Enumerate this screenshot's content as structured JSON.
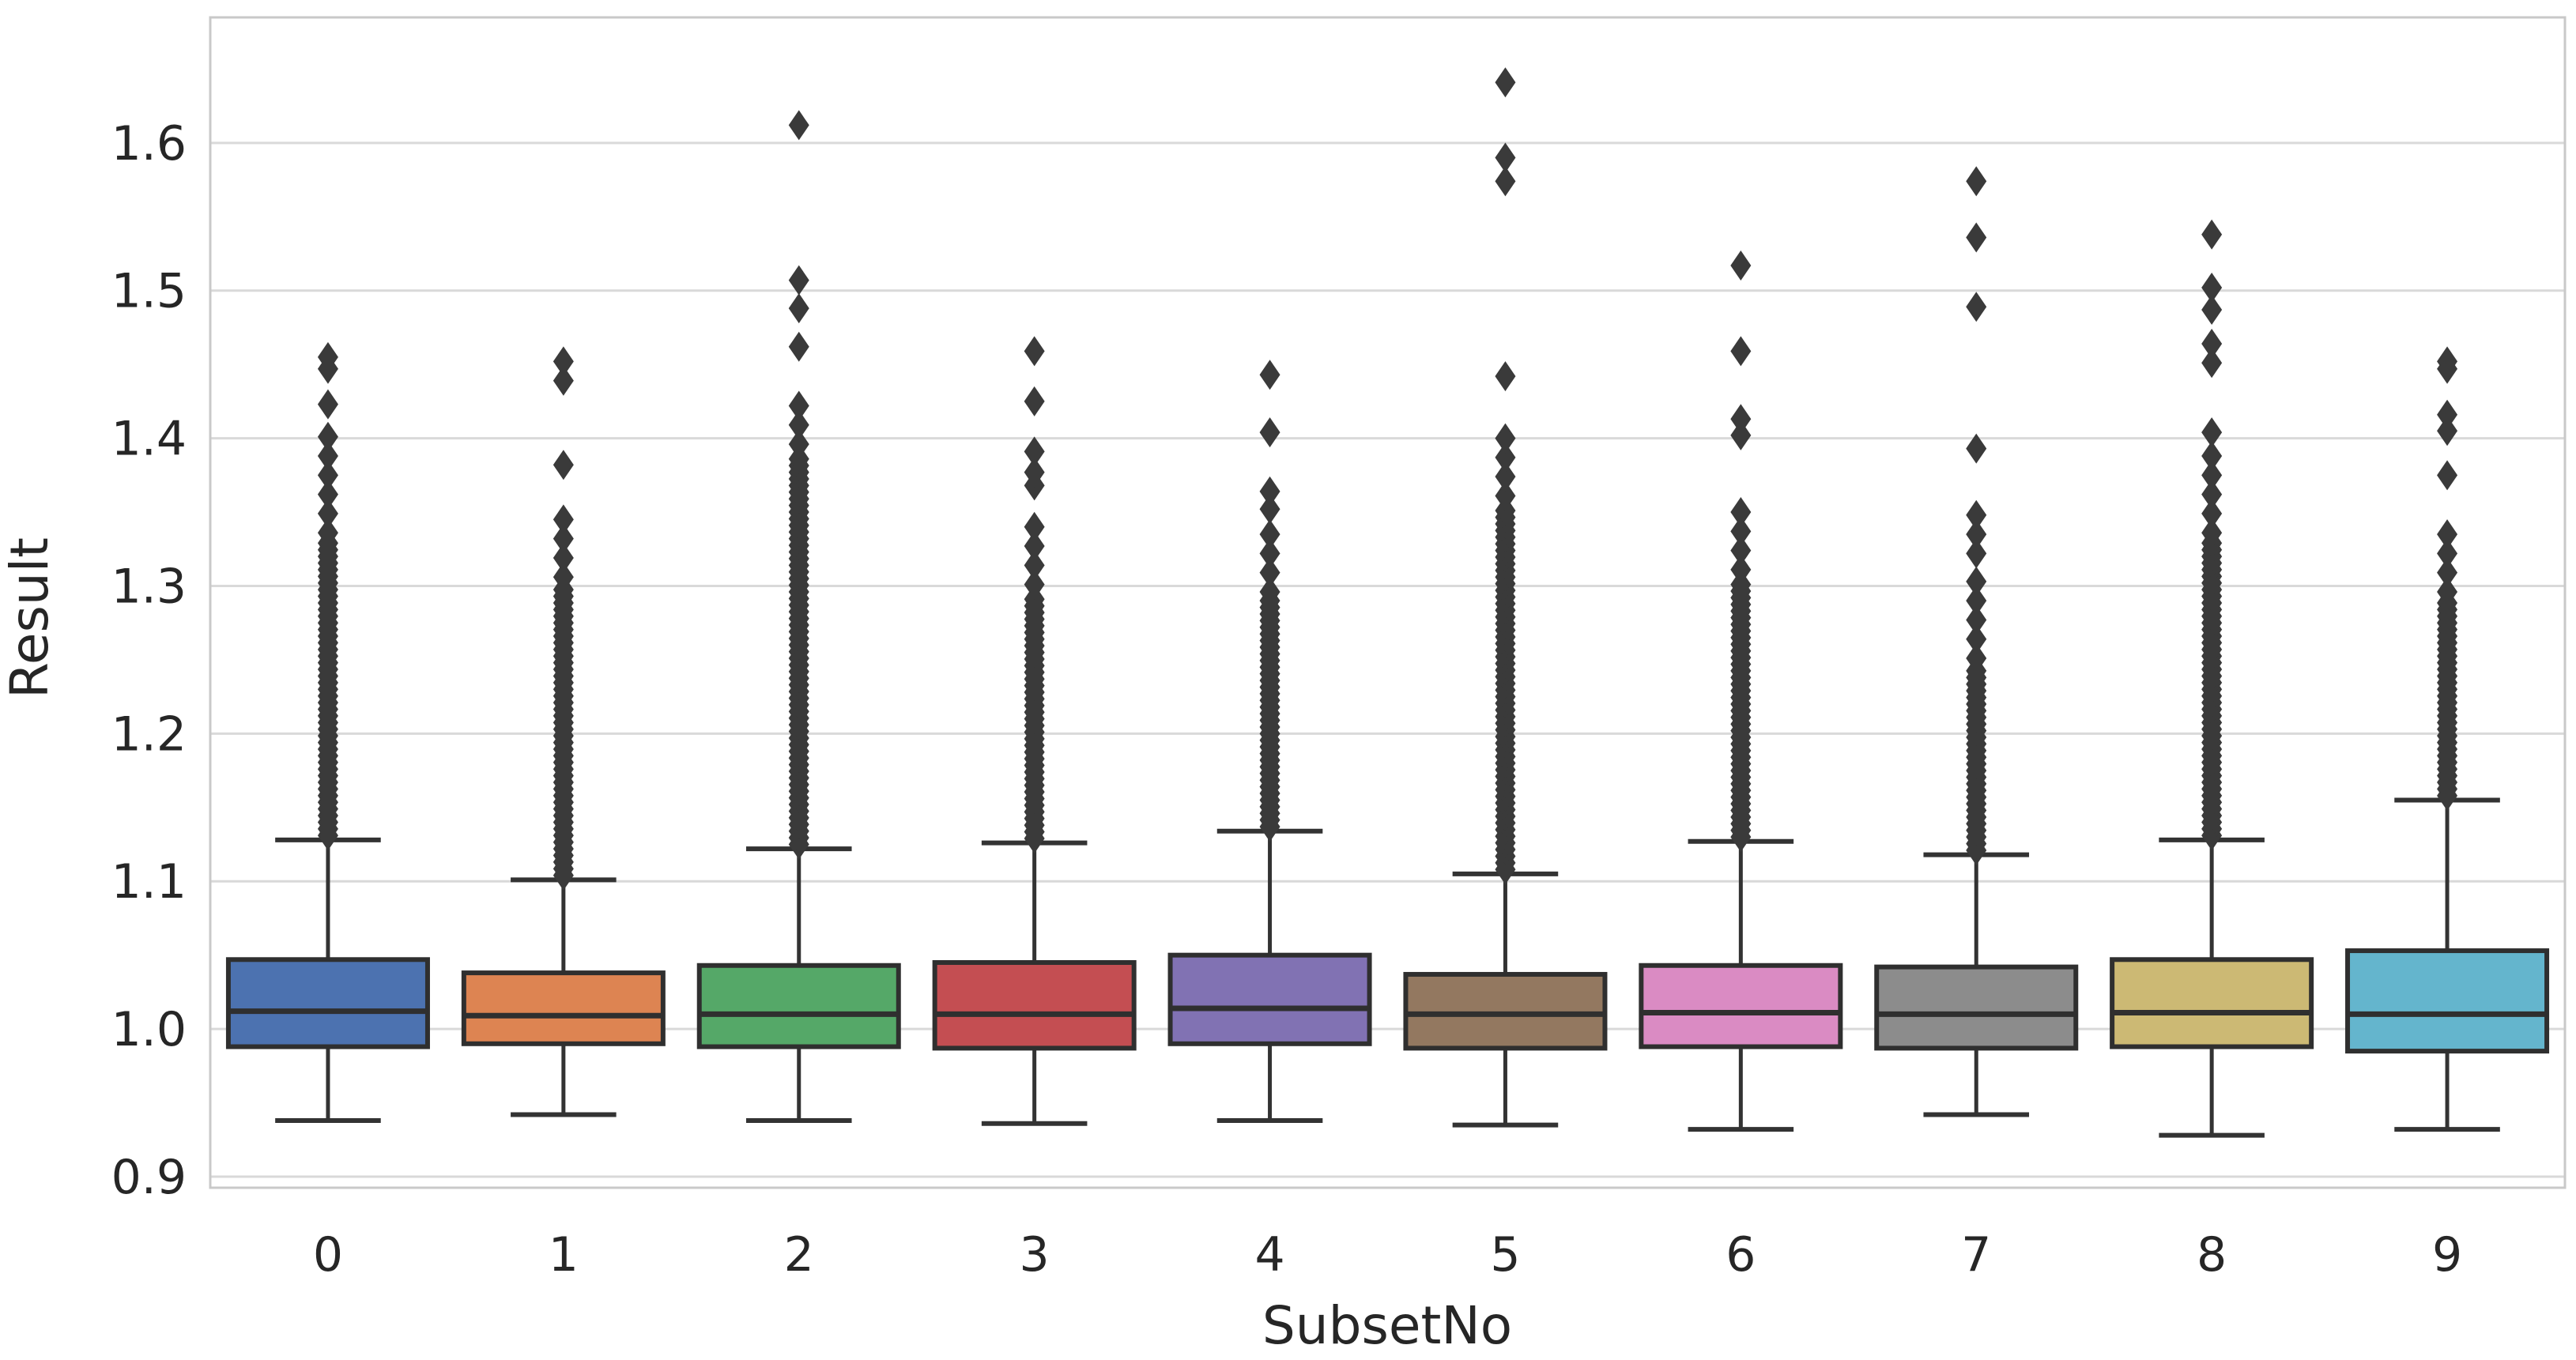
{
  "figure": {
    "background": "#ffffff"
  },
  "chart_data": {
    "type": "box",
    "title": "",
    "xlabel": "SubsetNo",
    "ylabel": "Result",
    "categories": [
      "0",
      "1",
      "2",
      "3",
      "4",
      "5",
      "6",
      "7",
      "8",
      "9"
    ],
    "y_axis": {
      "min": 0.8925,
      "max": 1.685,
      "ticks": [
        0.9,
        1.0,
        1.1,
        1.2,
        1.3,
        1.4,
        1.5,
        1.6
      ],
      "tick_labels": [
        "0.9",
        "1.0",
        "1.1",
        "1.2",
        "1.3",
        "1.4",
        "1.5",
        "1.6"
      ]
    },
    "grid": true,
    "legend": false,
    "grid_color": "#d9d9d9",
    "spine_color": "#c9c9c9",
    "line_color": "#2f2f2f",
    "whisker_color": "#333333",
    "flier_color": "#3a3a3a",
    "flier_marker": "diamond",
    "palette": [
      "#4C72B0",
      "#DD8452",
      "#55A868",
      "#C44E52",
      "#8172B3",
      "#937860",
      "#DA8BC3",
      "#8C8C8C",
      "#CCB974",
      "#64B5CD"
    ],
    "boxes": [
      {
        "category": "0",
        "color": "#4C72B0",
        "whisker_low": 0.938,
        "q1": 0.988,
        "median": 1.012,
        "q3": 1.047,
        "whisker_high": 1.128,
        "outliers_dense": {
          "from": 1.131,
          "to": 1.33,
          "step": 0.0045
        },
        "outliers_sparse": {
          "from": 1.336,
          "to": 1.41,
          "step": 0.013
        },
        "outliers": [
          1.423,
          1.447,
          1.455
        ]
      },
      {
        "category": "1",
        "color": "#DD8452",
        "whisker_low": 0.942,
        "q1": 0.99,
        "median": 1.009,
        "q3": 1.038,
        "whisker_high": 1.101,
        "outliers_dense": {
          "from": 1.104,
          "to": 1.3,
          "step": 0.0045
        },
        "outliers_sparse": {
          "from": 1.306,
          "to": 1.345,
          "step": 0.013
        },
        "outliers": [
          1.382,
          1.439,
          1.452
        ]
      },
      {
        "category": "2",
        "color": "#55A868",
        "whisker_low": 0.938,
        "q1": 0.988,
        "median": 1.01,
        "q3": 1.043,
        "whisker_high": 1.122,
        "outliers_dense": {
          "from": 1.125,
          "to": 1.39,
          "step": 0.0045
        },
        "outliers_sparse": {
          "from": 1.396,
          "to": 1.43,
          "step": 0.013
        },
        "outliers": [
          1.462,
          1.488,
          1.507,
          1.612
        ]
      },
      {
        "category": "3",
        "color": "#C44E52",
        "whisker_low": 0.936,
        "q1": 0.987,
        "median": 1.01,
        "q3": 1.045,
        "whisker_high": 1.126,
        "outliers_dense": {
          "from": 1.129,
          "to": 1.295,
          "step": 0.0045
        },
        "outliers_sparse": {
          "from": 1.301,
          "to": 1.34,
          "step": 0.013
        },
        "outliers": [
          1.368,
          1.377,
          1.391,
          1.425,
          1.459
        ]
      },
      {
        "category": "4",
        "color": "#8172B3",
        "whisker_low": 0.938,
        "q1": 0.99,
        "median": 1.014,
        "q3": 1.05,
        "whisker_high": 1.134,
        "outliers_dense": {
          "from": 1.137,
          "to": 1.29,
          "step": 0.0045
        },
        "outliers_sparse": {
          "from": 1.296,
          "to": 1.34,
          "step": 0.013
        },
        "outliers": [
          1.352,
          1.364,
          1.404,
          1.443
        ]
      },
      {
        "category": "5",
        "color": "#937860",
        "whisker_low": 0.935,
        "q1": 0.987,
        "median": 1.01,
        "q3": 1.037,
        "whisker_high": 1.105,
        "outliers_dense": {
          "from": 1.108,
          "to": 1.355,
          "step": 0.0045
        },
        "outliers_sparse": {
          "from": 1.361,
          "to": 1.408,
          "step": 0.013
        },
        "outliers": [
          1.442,
          1.574,
          1.59,
          1.641
        ]
      },
      {
        "category": "6",
        "color": "#DA8BC3",
        "whisker_low": 0.932,
        "q1": 0.988,
        "median": 1.011,
        "q3": 1.043,
        "whisker_high": 1.127,
        "outliers_dense": {
          "from": 1.13,
          "to": 1.305,
          "step": 0.0045
        },
        "outliers_sparse": {
          "from": 1.311,
          "to": 1.36,
          "step": 0.013
        },
        "outliers": [
          1.402,
          1.413,
          1.459,
          1.517
        ]
      },
      {
        "category": "7",
        "color": "#8C8C8C",
        "whisker_low": 0.942,
        "q1": 0.987,
        "median": 1.01,
        "q3": 1.042,
        "whisker_high": 1.118,
        "outliers_dense": {
          "from": 1.121,
          "to": 1.245,
          "step": 0.0045
        },
        "outliers_sparse": {
          "from": 1.251,
          "to": 1.31,
          "step": 0.013
        },
        "outliers": [
          1.322,
          1.335,
          1.348,
          1.393,
          1.489,
          1.536,
          1.574
        ]
      },
      {
        "category": "8",
        "color": "#CCB974",
        "whisker_low": 0.928,
        "q1": 0.988,
        "median": 1.011,
        "q3": 1.047,
        "whisker_high": 1.128,
        "outliers_dense": {
          "from": 1.131,
          "to": 1.33,
          "step": 0.0045
        },
        "outliers_sparse": {
          "from": 1.336,
          "to": 1.392,
          "step": 0.013
        },
        "outliers": [
          1.404,
          1.451,
          1.464,
          1.487,
          1.502,
          1.538
        ]
      },
      {
        "category": "9",
        "color": "#64B5CD",
        "whisker_low": 0.932,
        "q1": 0.985,
        "median": 1.01,
        "q3": 1.053,
        "whisker_high": 1.155,
        "outliers_dense": {
          "from": 1.158,
          "to": 1.29,
          "step": 0.0045
        },
        "outliers_sparse": {
          "from": 1.296,
          "to": 1.335,
          "step": 0.013
        },
        "outliers": [
          1.375,
          1.405,
          1.416,
          1.447,
          1.452
        ]
      }
    ]
  }
}
